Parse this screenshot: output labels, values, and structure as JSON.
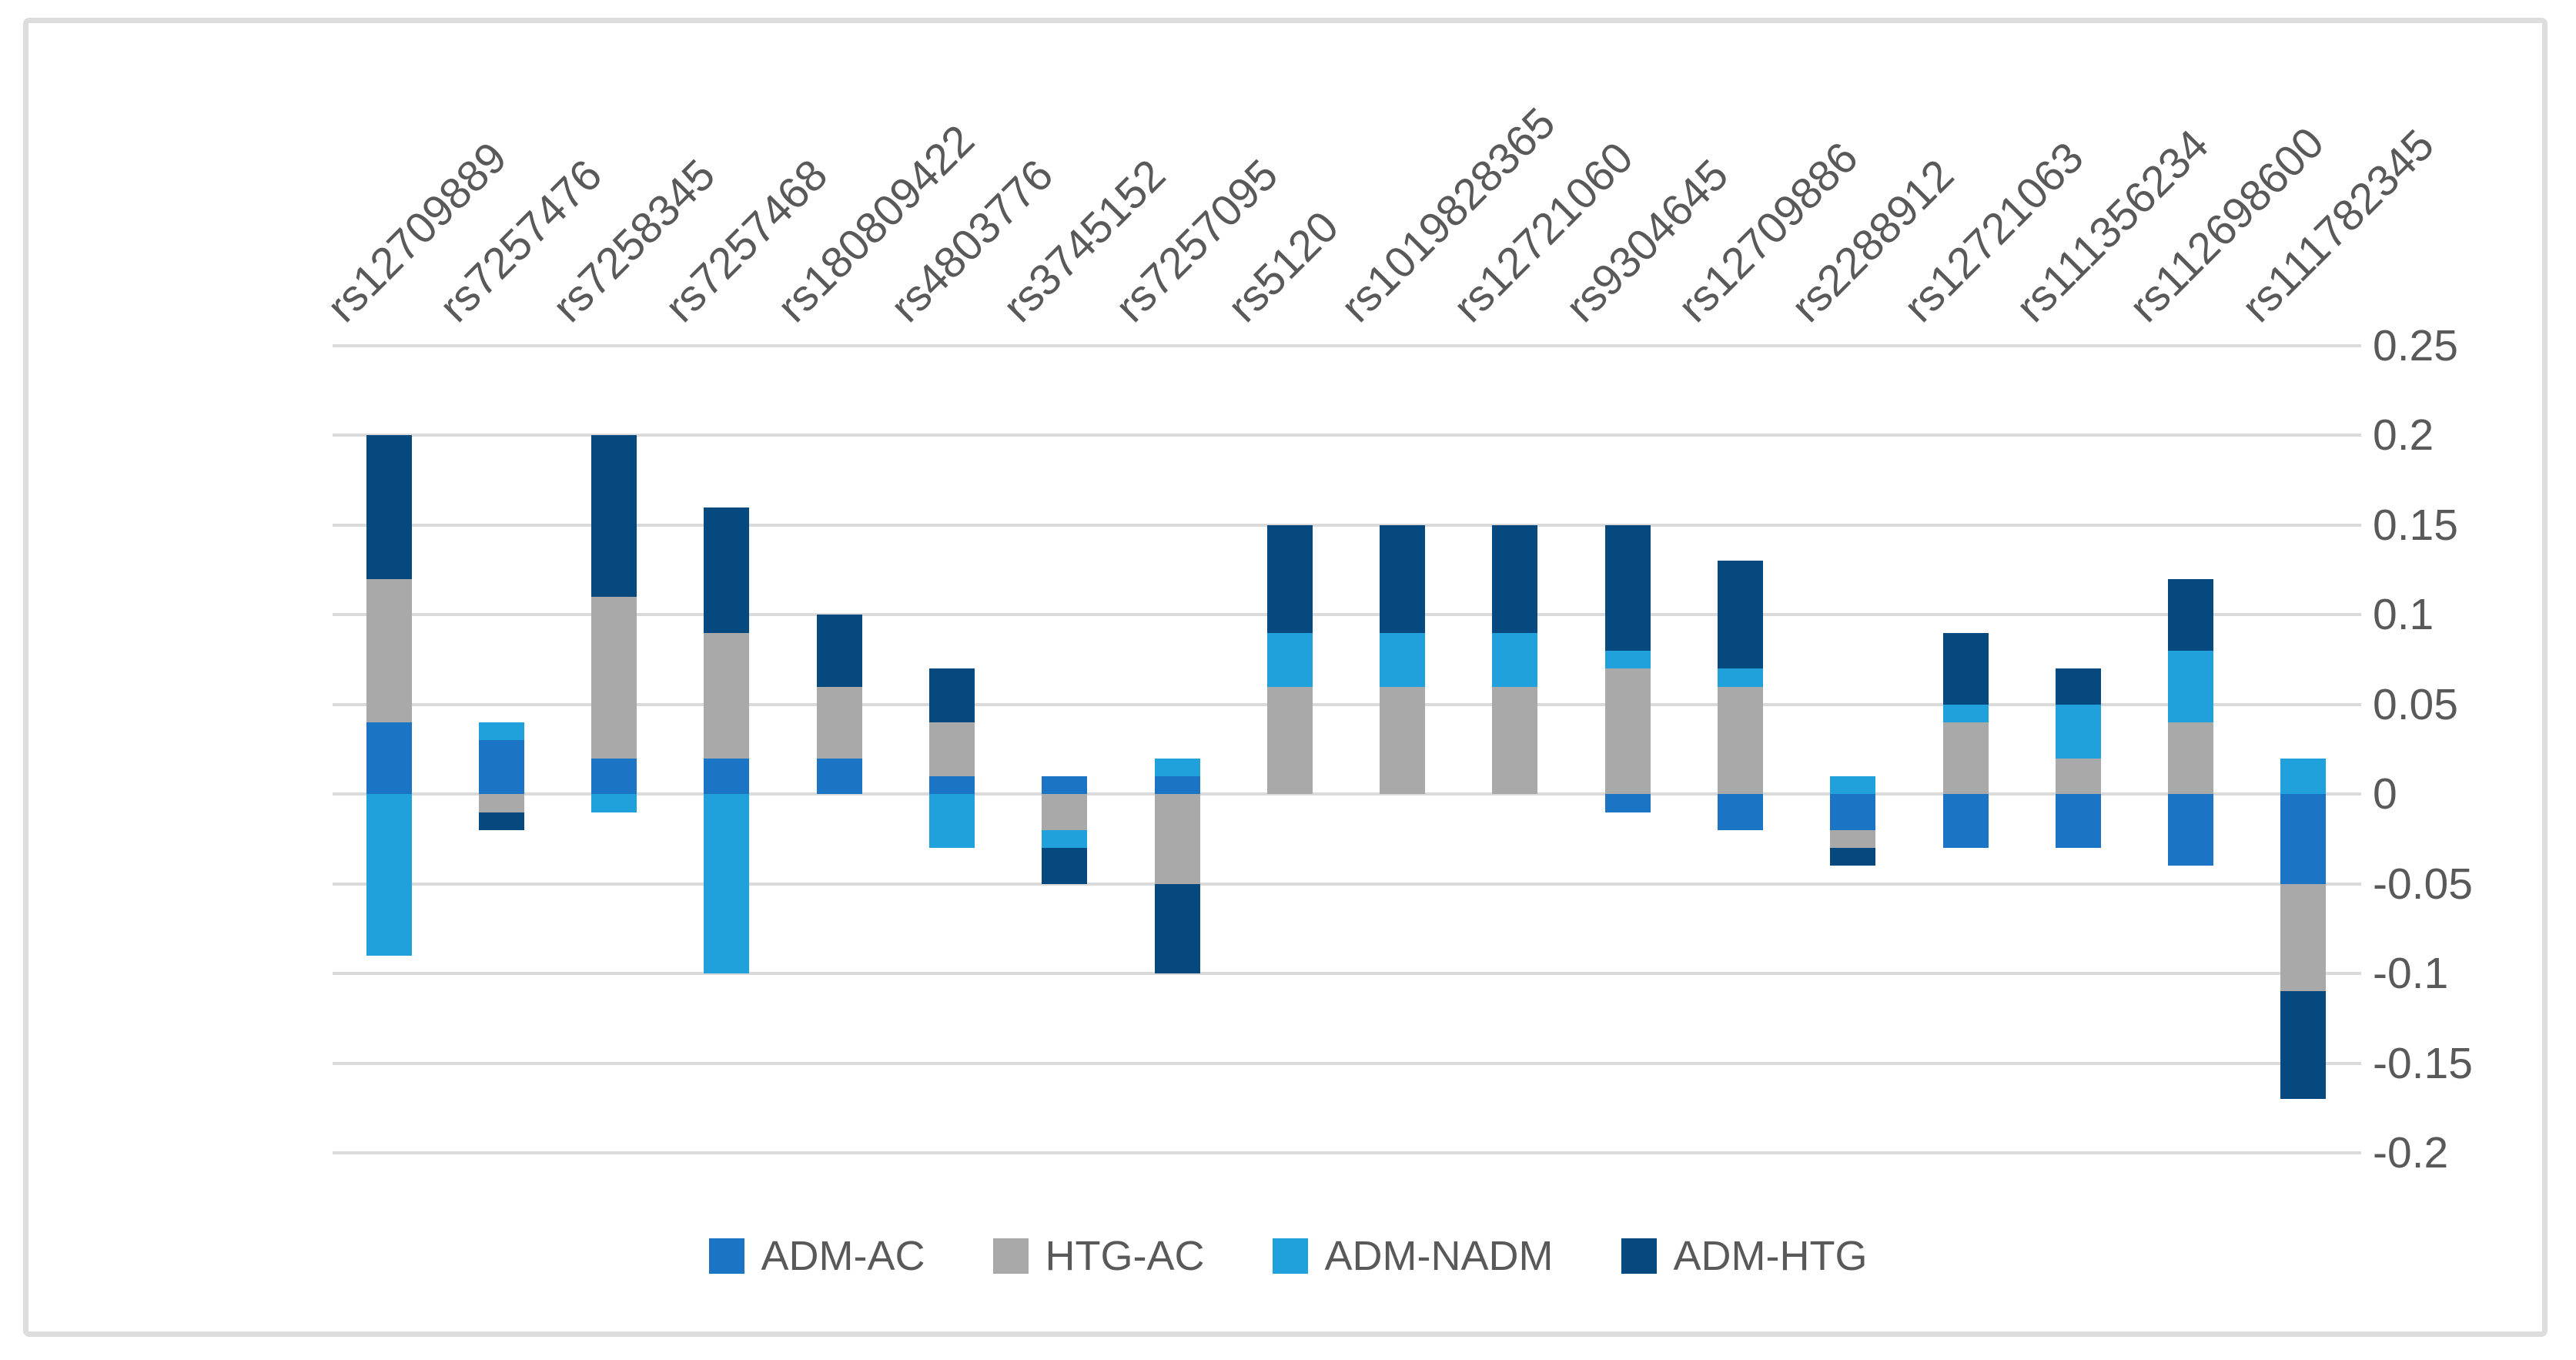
{
  "figure": {
    "background_color": "#FFFFFF",
    "border_color": "#DDDDDD",
    "gridline_color": "#DADADA",
    "axis_text_color": "#595959"
  },
  "chart_data": {
    "type": "bar",
    "stacked": true,
    "title": "",
    "xlabel": "",
    "ylabel": "",
    "grid": "horizontal",
    "legend_position": "bottom",
    "ylim": [
      -0.2,
      0.25
    ],
    "y_ticks": [
      0.25,
      0.2,
      0.15,
      0.1,
      0.05,
      0,
      -0.05,
      -0.1,
      -0.15,
      -0.2
    ],
    "y_tick_labels": [
      "0.25",
      "0.2",
      "0.15",
      "0.1",
      "0.05",
      "0",
      "-0.05",
      "-0.1",
      "-0.15",
      "-0.2"
    ],
    "categories": [
      "rs12709889",
      "rs7257476",
      "rs7258345",
      "rs7257468",
      "rs180809422",
      "rs4803776",
      "rs3745152",
      "rs7257095",
      "rs5120",
      "rs1019828365",
      "rs12721060",
      "rs9304645",
      "rs12709886",
      "rs2288912",
      "rs12721063",
      "rs111356234",
      "rs112698600",
      "rs111782345"
    ],
    "series": [
      {
        "name": "ADM-AC",
        "color": "#1B74C4",
        "values": [
          0.04,
          0.03,
          0.02,
          0.02,
          0.02,
          0.01,
          0.01,
          0.01,
          0,
          0,
          0,
          -0.01,
          -0.02,
          -0.02,
          -0.03,
          -0.03,
          -0.04,
          -0.05
        ]
      },
      {
        "name": "HTG-AC",
        "color": "#A9A9A9",
        "values": [
          0.08,
          -0.01,
          0.09,
          0.07,
          0.04,
          0.03,
          -0.02,
          -0.05,
          0.06,
          0.06,
          0.06,
          0.07,
          0.06,
          -0.01,
          0.04,
          0.02,
          0.04,
          -0.06
        ]
      },
      {
        "name": "ADM-NADM",
        "color": "#21A1DB",
        "values": [
          -0.09,
          0.01,
          -0.01,
          -0.1,
          0,
          -0.03,
          -0.01,
          0.01,
          0.03,
          0.03,
          0.03,
          0.01,
          0.01,
          0.01,
          0.01,
          0.03,
          0.04,
          0.02
        ]
      },
      {
        "name": "ADM-HTG",
        "color": "#05497E",
        "values": [
          0.08,
          -0.01,
          0.09,
          0.07,
          0.04,
          0.03,
          -0.02,
          -0.05,
          0.06,
          0.06,
          0.06,
          0.07,
          0.06,
          -0.01,
          0.04,
          0.02,
          0.04,
          -0.06
        ]
      }
    ]
  }
}
